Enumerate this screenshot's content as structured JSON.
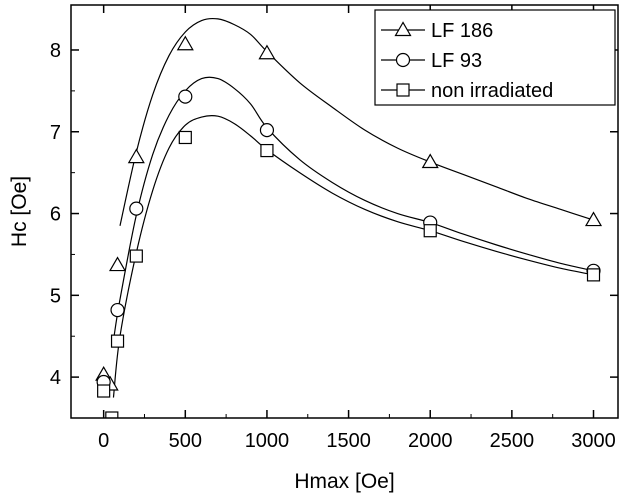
{
  "chart_data": {
    "type": "line",
    "xlabel": "Hmax [Oe]",
    "ylabel": "Hc [Oe]",
    "xlim": [
      -200,
      3150
    ],
    "ylim": [
      3.5,
      8.55
    ],
    "xticks": [
      0,
      500,
      1000,
      1500,
      2000,
      2500,
      3000
    ],
    "yticks": [
      4,
      5,
      6,
      7,
      8
    ],
    "legend_position": "top-right",
    "series": [
      {
        "name": "LF 186",
        "marker": "triangle",
        "points": [
          [
            0,
            4.03
          ],
          [
            40,
            3.91
          ],
          [
            85,
            5.37
          ],
          [
            200,
            6.69
          ],
          [
            500,
            8.07
          ],
          [
            1000,
            7.96
          ],
          [
            2000,
            6.63
          ],
          [
            3000,
            5.92
          ]
        ],
        "curve": [
          [
            100,
            5.85
          ],
          [
            200,
            6.75
          ],
          [
            300,
            7.45
          ],
          [
            400,
            7.93
          ],
          [
            500,
            8.22
          ],
          [
            600,
            8.36
          ],
          [
            700,
            8.38
          ],
          [
            800,
            8.31
          ],
          [
            900,
            8.19
          ],
          [
            1000,
            7.98
          ],
          [
            1200,
            7.6
          ],
          [
            1400,
            7.3
          ],
          [
            1600,
            7.02
          ],
          [
            1800,
            6.8
          ],
          [
            2000,
            6.63
          ],
          [
            2200,
            6.48
          ],
          [
            2400,
            6.33
          ],
          [
            2600,
            6.18
          ],
          [
            2800,
            6.05
          ],
          [
            3000,
            5.92
          ]
        ]
      },
      {
        "name": "LF 93",
        "marker": "circle",
        "points": [
          [
            0,
            3.94
          ],
          [
            85,
            4.82
          ],
          [
            200,
            6.06
          ],
          [
            500,
            7.43
          ],
          [
            1000,
            7.02
          ],
          [
            2000,
            5.89
          ],
          [
            3000,
            5.3
          ]
        ],
        "curve": [
          [
            60,
            4.45
          ],
          [
            100,
            4.95
          ],
          [
            200,
            5.98
          ],
          [
            300,
            6.72
          ],
          [
            400,
            7.2
          ],
          [
            500,
            7.5
          ],
          [
            600,
            7.65
          ],
          [
            700,
            7.65
          ],
          [
            800,
            7.53
          ],
          [
            900,
            7.34
          ],
          [
            1000,
            7.05
          ],
          [
            1200,
            6.66
          ],
          [
            1400,
            6.38
          ],
          [
            1600,
            6.16
          ],
          [
            1800,
            6.0
          ],
          [
            2000,
            5.89
          ],
          [
            2200,
            5.75
          ],
          [
            2400,
            5.62
          ],
          [
            2600,
            5.5
          ],
          [
            2800,
            5.39
          ],
          [
            3000,
            5.3
          ]
        ]
      },
      {
        "name": "non irradiated",
        "marker": "square",
        "points": [
          [
            0,
            3.83
          ],
          [
            50,
            3.5
          ],
          [
            85,
            4.44
          ],
          [
            200,
            5.48
          ],
          [
            500,
            6.93
          ],
          [
            1000,
            6.77
          ],
          [
            2000,
            5.79
          ],
          [
            3000,
            5.25
          ]
        ],
        "curve": [
          [
            60,
            3.75
          ],
          [
            100,
            4.5
          ],
          [
            200,
            5.52
          ],
          [
            300,
            6.28
          ],
          [
            400,
            6.8
          ],
          [
            500,
            7.08
          ],
          [
            600,
            7.18
          ],
          [
            700,
            7.19
          ],
          [
            800,
            7.1
          ],
          [
            900,
            6.95
          ],
          [
            1000,
            6.78
          ],
          [
            1200,
            6.5
          ],
          [
            1400,
            6.25
          ],
          [
            1600,
            6.05
          ],
          [
            1800,
            5.9
          ],
          [
            2000,
            5.79
          ],
          [
            2200,
            5.66
          ],
          [
            2400,
            5.54
          ],
          [
            2600,
            5.43
          ],
          [
            2800,
            5.33
          ],
          [
            3000,
            5.25
          ]
        ]
      }
    ]
  }
}
